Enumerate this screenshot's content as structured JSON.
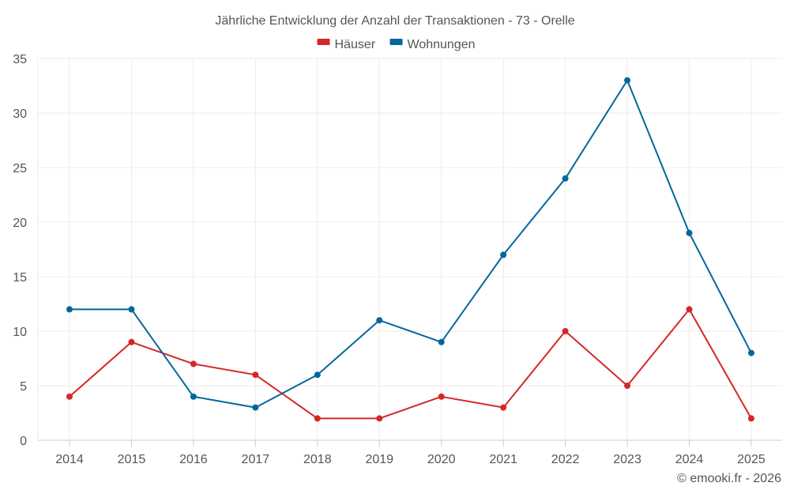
{
  "chart_data": {
    "type": "line",
    "title": "Jährliche Entwicklung der Anzahl der Transaktionen - 73 - Orelle",
    "xlabel": "",
    "ylabel": "",
    "categories": [
      "2014",
      "2015",
      "2016",
      "2017",
      "2018",
      "2019",
      "2020",
      "2021",
      "2022",
      "2023",
      "2024",
      "2025"
    ],
    "ylim": [
      0,
      35
    ],
    "yticks": [
      0,
      5,
      10,
      15,
      20,
      25,
      30,
      35
    ],
    "grid": true,
    "legend_position": "top-center",
    "series": [
      {
        "name": "Häuser",
        "color": "#d62728",
        "values": [
          4,
          9,
          7,
          6,
          2,
          2,
          4,
          3,
          10,
          5,
          12,
          2
        ]
      },
      {
        "name": "Wohnungen",
        "color": "#04669c",
        "values": [
          12,
          12,
          4,
          3,
          6,
          11,
          9,
          17,
          24,
          33,
          19,
          8
        ]
      }
    ],
    "credit": "© emooki.fr - 2026"
  }
}
